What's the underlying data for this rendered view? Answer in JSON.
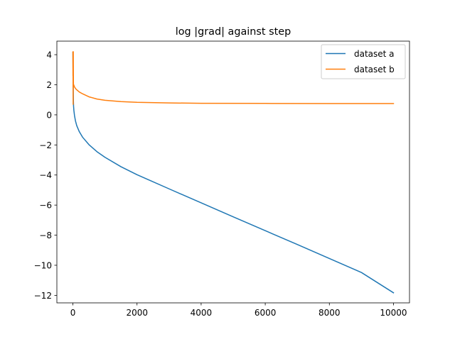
{
  "chart_data": {
    "type": "line",
    "title": "log |grad| against step",
    "xlabel": "",
    "ylabel": "",
    "xlim": [
      -500,
      10500
    ],
    "ylim": [
      -12.5,
      4.9
    ],
    "x_ticks": [
      0,
      2000,
      4000,
      6000,
      8000,
      10000
    ],
    "y_ticks": [
      4,
      2,
      0,
      -2,
      -4,
      -6,
      -8,
      -10,
      -12
    ],
    "y_tick_labels": [
      "4",
      "2",
      "0",
      "−2",
      "−4",
      "−6",
      "−8",
      "−10",
      "−12"
    ],
    "grid": false,
    "legend_position": "upper right",
    "series": [
      {
        "name": "dataset a",
        "color": "#1f77b4",
        "points": [
          [
            0,
            4.15
          ],
          [
            2,
            3.6
          ],
          [
            5,
            3.0
          ],
          [
            8,
            2.4
          ],
          [
            12,
            1.5
          ],
          [
            16,
            0.9
          ],
          [
            20,
            0.6
          ],
          [
            30,
            0.3
          ],
          [
            50,
            -0.05
          ],
          [
            80,
            -0.4
          ],
          [
            120,
            -0.72
          ],
          [
            200,
            -1.12
          ],
          [
            300,
            -1.48
          ],
          [
            500,
            -1.98
          ],
          [
            750,
            -2.45
          ],
          [
            1000,
            -2.82
          ],
          [
            1500,
            -3.45
          ],
          [
            2000,
            -3.98
          ],
          [
            3000,
            -4.92
          ],
          [
            4000,
            -5.85
          ],
          [
            5000,
            -6.78
          ],
          [
            6000,
            -7.7
          ],
          [
            7000,
            -8.62
          ],
          [
            8000,
            -9.55
          ],
          [
            9000,
            -10.48
          ],
          [
            10000,
            -11.83
          ]
        ]
      },
      {
        "name": "dataset b",
        "color": "#ff7f0e",
        "points": [
          [
            0,
            4.18
          ],
          [
            2,
            2.6
          ],
          [
            4,
            3.4
          ],
          [
            6,
            1.5
          ],
          [
            8,
            0.7
          ],
          [
            10,
            2.9
          ],
          [
            12,
            4.2
          ],
          [
            14,
            3.0
          ],
          [
            16,
            2.2
          ],
          [
            18,
            1.9
          ],
          [
            25,
            2.0
          ],
          [
            50,
            1.85
          ],
          [
            100,
            1.7
          ],
          [
            200,
            1.52
          ],
          [
            300,
            1.4
          ],
          [
            500,
            1.2
          ],
          [
            750,
            1.05
          ],
          [
            1000,
            0.97
          ],
          [
            1500,
            0.88
          ],
          [
            2000,
            0.83
          ],
          [
            3000,
            0.79
          ],
          [
            4000,
            0.77
          ],
          [
            6000,
            0.76
          ],
          [
            8000,
            0.75
          ],
          [
            10000,
            0.75
          ]
        ]
      }
    ]
  }
}
